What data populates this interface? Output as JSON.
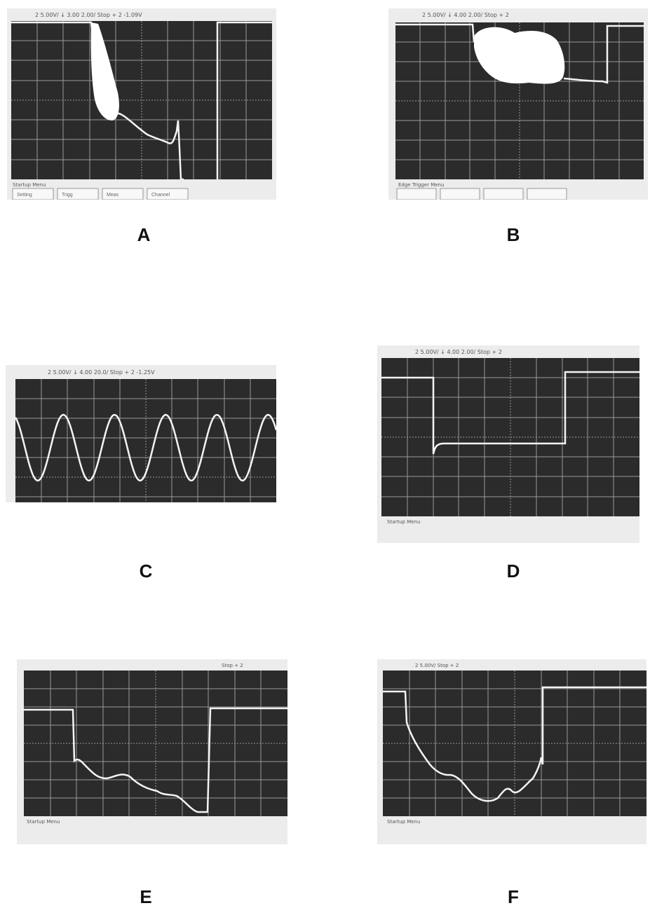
{
  "colors": {
    "bezel": "#ececec",
    "screen": "#2b2b2b",
    "grid": "#9a9a9a",
    "trace": "#f4f4f4",
    "label": "#111111"
  },
  "panels": [
    {
      "label": "A",
      "status_text": "2 5.00V/   ↓ 3.00  2.00/  Stop + 2 -1.09V",
      "menu_title": "Startup Menu",
      "softkeys": [
        "Setting",
        "Trigg",
        "Meas",
        "Channel"
      ]
    },
    {
      "label": "B",
      "status_text": "2 5.00V/   ↓ 4.00  2.00/  Stop + 2",
      "menu_title": "Edge Trigger Menu",
      "softkeys": [
        "",
        "",
        "",
        ""
      ]
    },
    {
      "label": "C",
      "status_text": "2 5.00V/   ↓ 4.00  20.0/  Stop + 2 -1.25V",
      "menu_title": "",
      "softkeys": []
    },
    {
      "label": "D",
      "status_text": "2 5.00V/   ↓ 4.00  2.00/  Stop + 2",
      "menu_title": "Startup Menu",
      "softkeys": []
    },
    {
      "label": "E",
      "status_text": "Stop + 2",
      "menu_title": "Startup Menu",
      "softkeys": []
    },
    {
      "label": "F",
      "status_text": "2 5.00V/   Stop + 2",
      "menu_title": "Startup Menu",
      "softkeys": []
    }
  ]
}
